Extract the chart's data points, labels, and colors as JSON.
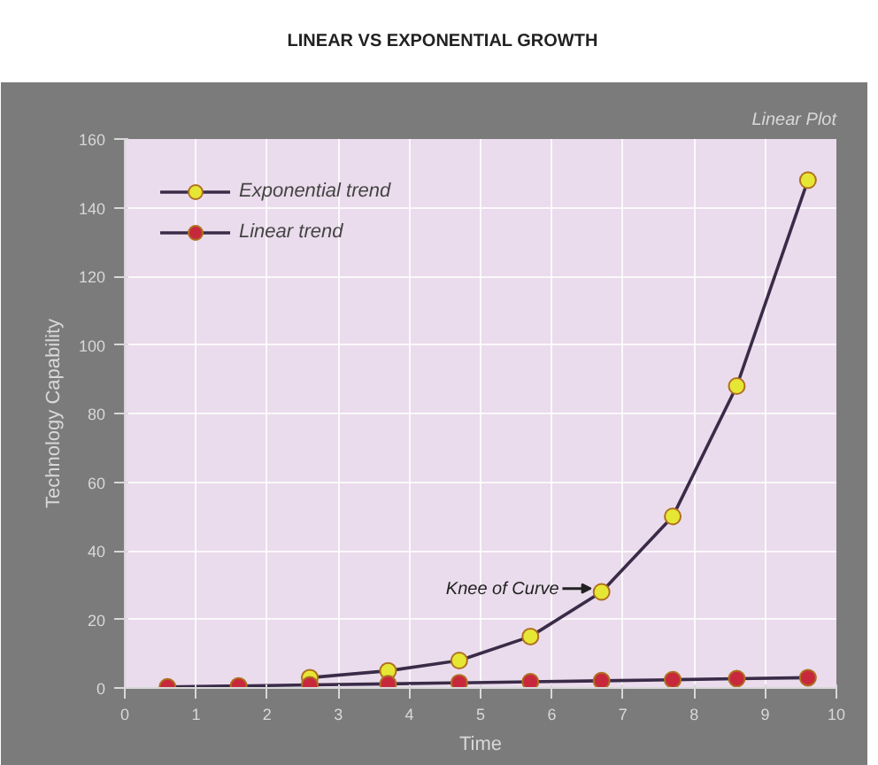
{
  "chart_data": {
    "type": "line",
    "title": "LINEAR VS EXPONENTIAL GROWTH",
    "xlabel": "Time",
    "ylabel": "Technology Capability",
    "annotations": [
      "Linear Plot",
      {
        "text": "Knee of Curve",
        "x": 6.7,
        "y": 28
      }
    ],
    "x": [
      0.6,
      1.6,
      2.6,
      3.7,
      4.7,
      5.7,
      6.7,
      7.7,
      8.6,
      9.6
    ],
    "series": [
      {
        "name": "Exponential trend",
        "color": "#e6e635",
        "values": [
          null,
          null,
          3,
          5,
          8,
          15,
          28,
          50,
          88,
          148
        ]
      },
      {
        "name": "Linear trend",
        "color": "#c8283c",
        "values": [
          0.3,
          0.6,
          0.9,
          1.2,
          1.5,
          1.8,
          2.1,
          2.4,
          2.7,
          3
        ]
      }
    ],
    "xlim": [
      0,
      10
    ],
    "xticks": [
      0,
      1,
      2,
      3,
      4,
      5,
      6,
      7,
      8,
      9,
      10
    ],
    "ylim": [
      0,
      160
    ],
    "yticks": [
      0,
      20,
      40,
      60,
      80,
      100,
      120,
      140,
      160
    ],
    "grid": true,
    "legend": "top left",
    "marker": "circle",
    "line_style": "solid"
  }
}
